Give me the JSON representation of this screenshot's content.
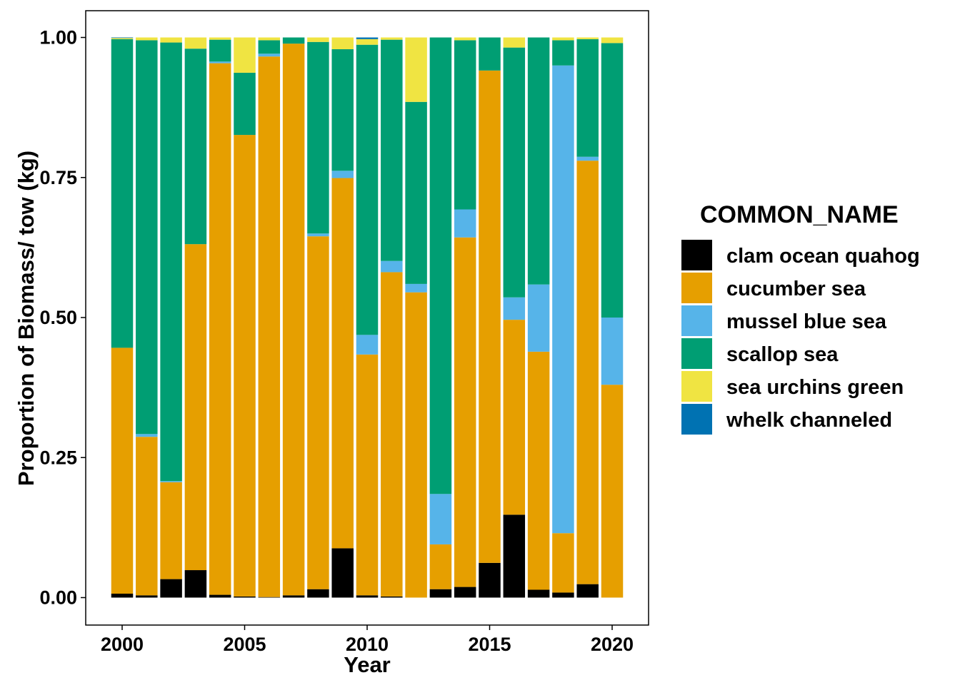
{
  "chart_data": {
    "type": "bar",
    "stacked": true,
    "xlabel": "Year",
    "ylabel": "Proportion of Biomass/ tow (kg)",
    "ylim": [
      0,
      1
    ],
    "yticks": [
      "0.00",
      "0.25",
      "0.50",
      "0.75",
      "1.00"
    ],
    "xticks": [
      "2000",
      "2005",
      "2010",
      "2015",
      "2020"
    ],
    "grid": false,
    "legend_title": "COMMON_NAME",
    "legend_position": "right",
    "categories": [
      2000,
      2001,
      2002,
      2003,
      2004,
      2005,
      2006,
      2007,
      2008,
      2009,
      2010,
      2011,
      2012,
      2013,
      2014,
      2015,
      2016,
      2017,
      2018,
      2019,
      2020
    ],
    "series": [
      {
        "name": "clam ocean quahog",
        "color": "#000000",
        "values": [
          0.007,
          0.004,
          0.033,
          0.049,
          0.005,
          0.002,
          0.001,
          0.004,
          0.015,
          0.088,
          0.004,
          0.002,
          0.0,
          0.015,
          0.019,
          0.062,
          0.148,
          0.014,
          0.009,
          0.024,
          0.0
        ]
      },
      {
        "name": "cucumber sea",
        "color": "#E69F00",
        "values": [
          0.439,
          0.283,
          0.173,
          0.582,
          0.949,
          0.824,
          0.965,
          0.985,
          0.63,
          0.661,
          0.43,
          0.579,
          0.545,
          0.08,
          0.624,
          0.879,
          0.348,
          0.425,
          0.106,
          0.756,
          0.38
        ]
      },
      {
        "name": "mussel blue sea",
        "color": "#56B4E9",
        "values": [
          0.0,
          0.005,
          0.002,
          0.0,
          0.003,
          0.0,
          0.005,
          0.0,
          0.005,
          0.013,
          0.035,
          0.02,
          0.015,
          0.09,
          0.05,
          0.0,
          0.04,
          0.12,
          0.835,
          0.007,
          0.12
        ]
      },
      {
        "name": "scallop sea",
        "color": "#009E73",
        "values": [
          0.551,
          0.703,
          0.783,
          0.349,
          0.039,
          0.111,
          0.024,
          0.011,
          0.342,
          0.217,
          0.518,
          0.395,
          0.325,
          0.815,
          0.302,
          0.059,
          0.446,
          0.441,
          0.045,
          0.21,
          0.49
        ]
      },
      {
        "name": "sea urchins green",
        "color": "#F0E442",
        "values": [
          0.002,
          0.005,
          0.009,
          0.02,
          0.004,
          0.063,
          0.005,
          0.0,
          0.008,
          0.021,
          0.01,
          0.004,
          0.115,
          0.0,
          0.005,
          0.0,
          0.018,
          0.0,
          0.005,
          0.003,
          0.01
        ]
      },
      {
        "name": "whelk channeled",
        "color": "#0072B2",
        "values": [
          0.001,
          0.0,
          0.0,
          0.0,
          0.0,
          0.0,
          0.0,
          0.0,
          0.0,
          0.0,
          0.003,
          0.0,
          0.0,
          0.0,
          0.0,
          0.0,
          0.0,
          0.0,
          0.0,
          0.0,
          0.0
        ]
      }
    ]
  }
}
